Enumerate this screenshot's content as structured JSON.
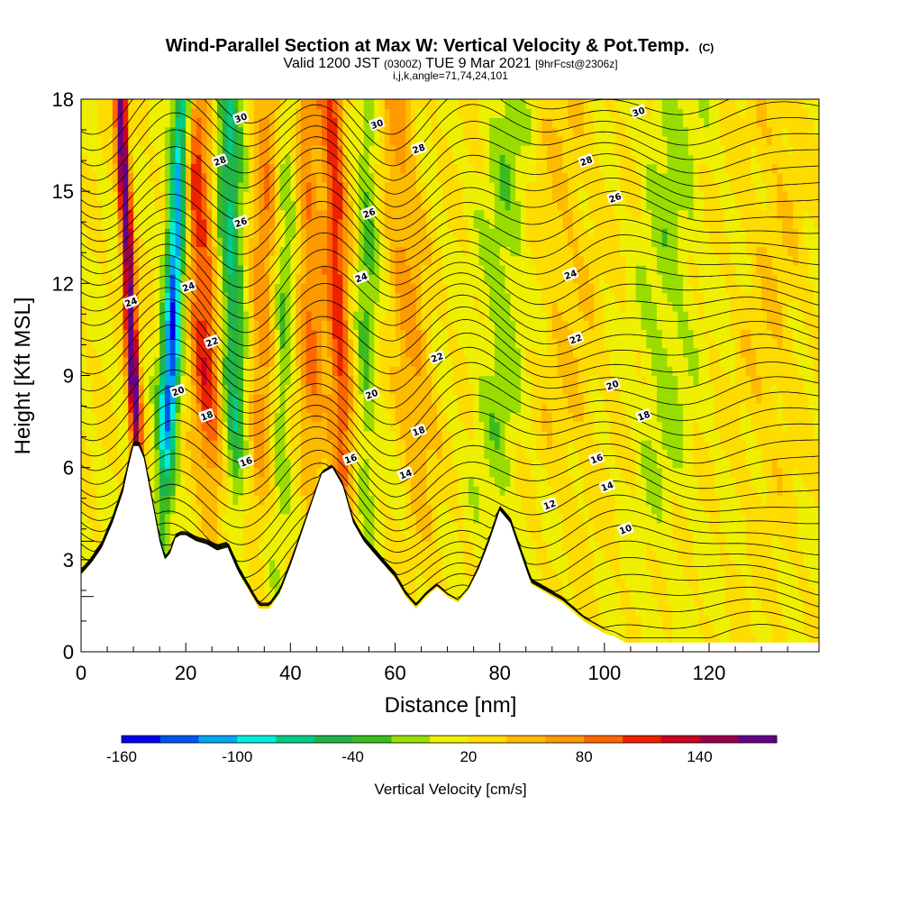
{
  "chart_data": {
    "type": "heatmap",
    "title": "Wind-Parallel Section at Max W: Vertical Velocity & Pot.Temp.",
    "title_mark": "(C)",
    "subtitle_parts": [
      "Valid 1200 JST ",
      "(0300Z)",
      " TUE 9 Mar 2021 ",
      "[9hrFcst@2306z]"
    ],
    "subtitle2": "i,j,k,angle=71,74,24,101",
    "xlabel": "Distance [nm]",
    "ylabel": "Height [Kft MSL]",
    "xlim": [
      0,
      141
    ],
    "ylim": [
      0,
      18
    ],
    "x_ticks": [
      "0",
      "20",
      "40",
      "60",
      "80",
      "100",
      "120"
    ],
    "y_ticks": [
      "0",
      "3",
      "6",
      "9",
      "12",
      "15",
      "18"
    ],
    "colorbar": {
      "title": "Vertical Velocity [cm/s]",
      "labels": [
        "-160",
        "-100",
        "-40",
        "20",
        "80",
        "140"
      ],
      "label_values": [
        -160,
        -100,
        -40,
        20,
        80,
        140
      ],
      "range": [
        -170,
        170
      ],
      "bins": 17,
      "colors": [
        "#0000ee",
        "#0055ee",
        "#00a8ee",
        "#00eedd",
        "#00cc88",
        "#22b44a",
        "#3cbb1e",
        "#99dd00",
        "#eef000",
        "#ffdc00",
        "#ffbb00",
        "#ff9900",
        "#ff6600",
        "#ee2200",
        "#cc0022",
        "#99004a",
        "#660088"
      ]
    },
    "contour_labels": [
      {
        "x": 9.5,
        "y": 11.4,
        "text": "24"
      },
      {
        "x": 30.5,
        "y": 17.4,
        "text": "30"
      },
      {
        "x": 26.5,
        "y": 16.0,
        "text": "28"
      },
      {
        "x": 30.5,
        "y": 14.0,
        "text": "26"
      },
      {
        "x": 20.5,
        "y": 11.9,
        "text": "24"
      },
      {
        "x": 25.0,
        "y": 10.1,
        "text": "22"
      },
      {
        "x": 18.5,
        "y": 8.5,
        "text": "20"
      },
      {
        "x": 24.0,
        "y": 7.7,
        "text": "18"
      },
      {
        "x": 31.5,
        "y": 6.2,
        "text": "16"
      },
      {
        "x": 56.5,
        "y": 17.2,
        "text": "30"
      },
      {
        "x": 64.5,
        "y": 16.4,
        "text": "28"
      },
      {
        "x": 55.0,
        "y": 14.3,
        "text": "26"
      },
      {
        "x": 53.5,
        "y": 12.2,
        "text": "24"
      },
      {
        "x": 68.0,
        "y": 9.6,
        "text": "22"
      },
      {
        "x": 55.5,
        "y": 8.4,
        "text": "20"
      },
      {
        "x": 64.5,
        "y": 7.2,
        "text": "18"
      },
      {
        "x": 51.5,
        "y": 6.3,
        "text": "16"
      },
      {
        "x": 62.0,
        "y": 5.8,
        "text": "14"
      },
      {
        "x": 106.5,
        "y": 17.6,
        "text": "30"
      },
      {
        "x": 96.5,
        "y": 16.0,
        "text": "28"
      },
      {
        "x": 102.0,
        "y": 14.8,
        "text": "26"
      },
      {
        "x": 93.5,
        "y": 12.3,
        "text": "24"
      },
      {
        "x": 94.5,
        "y": 10.2,
        "text": "22"
      },
      {
        "x": 101.5,
        "y": 8.7,
        "text": "20"
      },
      {
        "x": 107.5,
        "y": 7.7,
        "text": "18"
      },
      {
        "x": 98.5,
        "y": 6.3,
        "text": "16"
      },
      {
        "x": 100.5,
        "y": 5.4,
        "text": "14"
      },
      {
        "x": 89.5,
        "y": 4.8,
        "text": "12"
      },
      {
        "x": 104.0,
        "y": 4.0,
        "text": "10"
      }
    ],
    "terrain_profile": {
      "x": [
        0,
        2,
        4,
        6,
        8,
        9,
        10,
        11,
        12,
        13,
        14,
        15,
        16,
        17,
        18,
        19,
        20,
        22,
        24,
        26,
        28,
        30,
        32,
        34,
        36,
        38,
        40,
        42,
        44,
        46,
        48,
        50,
        52,
        54,
        56,
        58,
        60,
        62,
        64,
        66,
        68,
        70,
        72,
        74,
        76,
        78,
        80,
        82,
        84,
        86,
        88,
        90,
        92,
        94,
        96,
        98,
        100,
        102,
        104,
        106,
        110,
        141
      ],
      "y": [
        2.5,
        2.9,
        3.4,
        4.2,
        5.2,
        6.0,
        6.7,
        6.7,
        6.3,
        5.4,
        4.5,
        3.6,
        3.0,
        3.2,
        3.7,
        3.8,
        3.8,
        3.6,
        3.5,
        3.3,
        3.4,
        2.6,
        2.0,
        1.4,
        1.4,
        1.9,
        2.8,
        3.8,
        4.8,
        5.8,
        6.0,
        5.4,
        4.2,
        3.6,
        3.2,
        2.8,
        2.4,
        1.8,
        1.4,
        1.8,
        2.1,
        1.8,
        1.6,
        2.0,
        2.7,
        3.6,
        4.6,
        4.2,
        3.2,
        2.2,
        2.0,
        1.8,
        1.6,
        1.3,
        1.0,
        0.8,
        0.6,
        0.5,
        0.3,
        0.3,
        0.3,
        0.3
      ]
    },
    "vertical_velocity_bands": [
      {
        "x0": 12.5,
        "x1": 7.5,
        "amp": 160,
        "width": 1.2
      },
      {
        "x0": 14.5,
        "x1": 19.5,
        "amp": -150,
        "width": 1.8
      },
      {
        "x0": 27.0,
        "x1": 21.0,
        "amp": 90,
        "width": 3.0
      },
      {
        "x0": 30.0,
        "x1": 28.0,
        "amp": -80,
        "width": 2.4
      },
      {
        "x0": 33.5,
        "x1": 35.5,
        "amp": 55,
        "width": 2.5
      },
      {
        "x0": 37.0,
        "x1": 40.0,
        "amp": -40,
        "width": 2.0
      },
      {
        "x0": 45.0,
        "x1": 43.0,
        "amp": 60,
        "width": 2.8
      },
      {
        "x0": 51.0,
        "x1": 48.0,
        "amp": 90,
        "width": 2.2
      },
      {
        "x0": 54.0,
        "x1": 55.0,
        "amp": -40,
        "width": 2.0
      },
      {
        "x0": 67.0,
        "x1": 60.0,
        "amp": 45,
        "width": 3.5
      },
      {
        "x0": 78.0,
        "x1": 82.0,
        "amp": -30,
        "width": 4.0
      },
      {
        "x0": 95.0,
        "x1": 92.0,
        "amp": 20,
        "width": 6.0
      },
      {
        "x0": 110.0,
        "x1": 113.0,
        "amp": -25,
        "width": 5.0
      },
      {
        "x0": 130.0,
        "x1": 133.0,
        "amp": 18,
        "width": 6.0
      }
    ]
  }
}
